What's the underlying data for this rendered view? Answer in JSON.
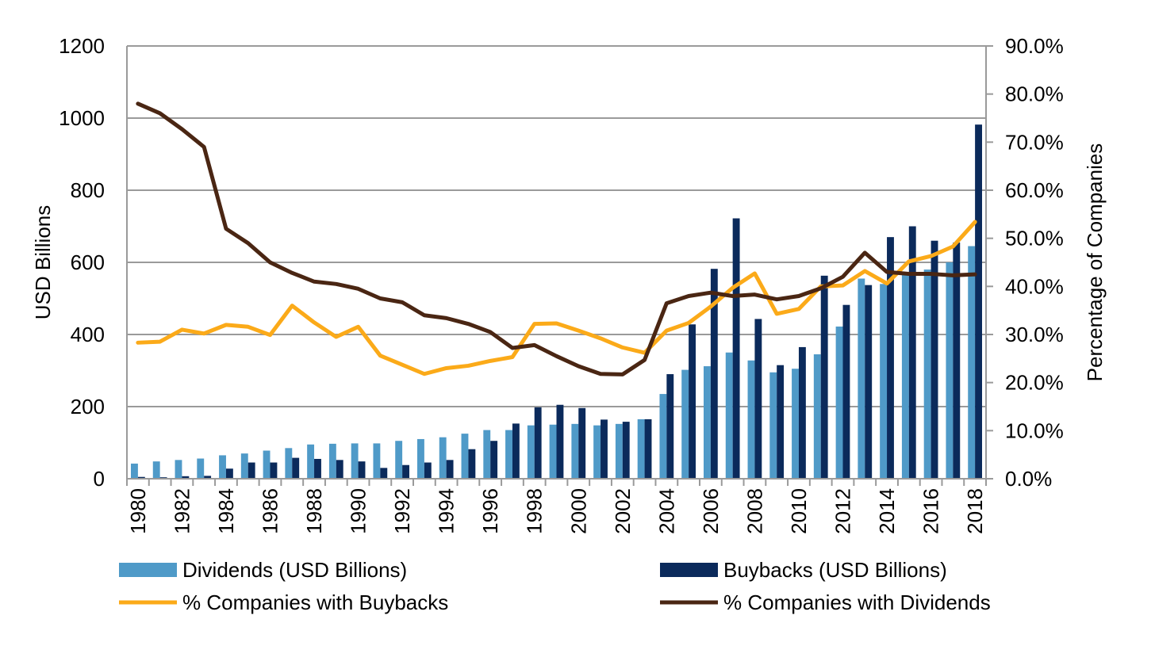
{
  "chart_data": {
    "type": "bar+line",
    "title": "",
    "xlabel": "",
    "ylabel": "USD Billions",
    "y2label": "Percentage of Companies",
    "ylim": [
      0,
      1200
    ],
    "y2lim": [
      0,
      90
    ],
    "yticks": [
      "0",
      "200",
      "400",
      "600",
      "800",
      "1000",
      "1200"
    ],
    "y2ticks": [
      "0.0%",
      "10.0%",
      "20.0%",
      "30.0%",
      "40.0%",
      "50.0%",
      "60.0%",
      "70.0%",
      "80.0%",
      "90.0%"
    ],
    "grid": true,
    "legend_position": "bottom",
    "categories": [
      "1980",
      "1981",
      "1982",
      "1983",
      "1984",
      "1985",
      "1986",
      "1987",
      "1988",
      "1989",
      "1990",
      "1991",
      "1992",
      "1993",
      "1994",
      "1995",
      "1996",
      "1997",
      "1998",
      "1999",
      "2000",
      "2001",
      "2002",
      "2003",
      "2004",
      "2005",
      "2006",
      "2007",
      "2008",
      "2009",
      "2010",
      "2011",
      "2012",
      "2013",
      "2014",
      "2015",
      "2016",
      "2017",
      "2018"
    ],
    "series": [
      {
        "name": "Dividends (USD Billions)",
        "type": "bar",
        "axis": "left",
        "color": "#4F9AC8",
        "values": [
          42,
          48,
          52,
          56,
          65,
          70,
          78,
          85,
          95,
          97,
          98,
          98,
          105,
          110,
          115,
          125,
          135,
          135,
          148,
          150,
          152,
          148,
          152,
          165,
          235,
          302,
          312,
          350,
          328,
          295,
          305,
          345,
          422,
          555,
          540,
          570,
          580,
          600,
          645
        ]
      },
      {
        "name": "Buybacks (USD Billions)",
        "type": "bar",
        "axis": "left",
        "color": "#0B2A5B",
        "values": [
          5,
          4,
          7,
          8,
          28,
          45,
          45,
          58,
          55,
          52,
          48,
          30,
          38,
          45,
          52,
          82,
          105,
          153,
          198,
          205,
          196,
          164,
          158,
          165,
          290,
          428,
          582,
          722,
          443,
          315,
          365,
          563,
          482,
          537,
          670,
          700,
          660,
          655,
          982
        ]
      },
      {
        "name": "% Companies with Buybacks",
        "type": "line",
        "axis": "right",
        "color": "#FBAA19",
        "values": [
          28.3,
          28.5,
          31,
          30.2,
          32,
          31.6,
          29.9,
          36,
          32.5,
          29.5,
          31.6,
          25.6,
          23.7,
          21.8,
          23,
          23.5,
          24.5,
          25.3,
          32.2,
          32.3,
          30.8,
          29.2,
          27.3,
          26.2,
          30.8,
          32.4,
          35.8,
          39.7,
          42.7,
          34.3,
          35.3,
          40,
          40.2,
          43.2,
          40.6,
          45.2,
          46.3,
          48.3,
          53.4
        ]
      },
      {
        "name": "% Companies with Dividends",
        "type": "line",
        "axis": "right",
        "color": "#4A2613",
        "values": [
          78,
          76,
          72.7,
          69,
          52,
          49,
          45,
          42.8,
          41,
          40.5,
          39.5,
          37.5,
          36.7,
          34,
          33.4,
          32.2,
          30.5,
          27.2,
          27.8,
          25.5,
          23.4,
          21.8,
          21.7,
          24.7,
          36.5,
          38,
          38.7,
          38,
          38.3,
          37.3,
          38,
          39.6,
          42,
          47,
          43,
          42.6,
          42.6,
          42.3,
          42.5
        ]
      }
    ]
  }
}
